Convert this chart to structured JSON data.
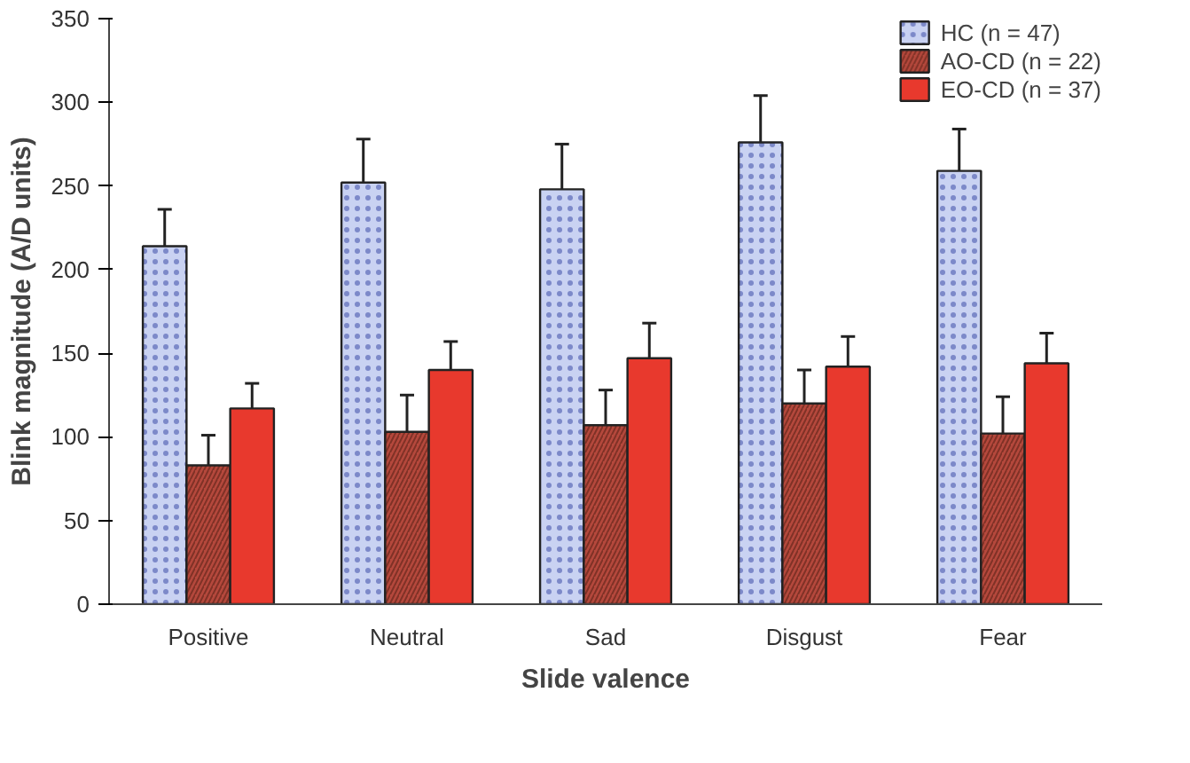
{
  "chart_data": {
    "type": "bar",
    "xlabel": "Slide valence",
    "ylabel": "Blink magnitude (A/D units)",
    "categories": [
      "Positive",
      "Neutral",
      "Sad",
      "Disgust",
      "Fear"
    ],
    "series": [
      {
        "name": "HC (n = 47)",
        "color": "#c9d2f2",
        "values": [
          214,
          252,
          248,
          276,
          259
        ],
        "errors": [
          [
            214,
            236
          ],
          [
            252,
            278
          ],
          [
            248,
            275
          ],
          [
            276,
            304
          ],
          [
            259,
            284
          ]
        ]
      },
      {
        "name": "AO-CD (n = 22)",
        "color": "#b5483c",
        "values": [
          83,
          103,
          107,
          120,
          102
        ],
        "errors": [
          [
            83,
            101
          ],
          [
            103,
            125
          ],
          [
            107,
            128
          ],
          [
            120,
            140
          ],
          [
            102,
            124
          ]
        ]
      },
      {
        "name": "EO-CD (n = 37)",
        "color": "#e8392d",
        "values": [
          117,
          140,
          147,
          142,
          144
        ],
        "errors": [
          [
            117,
            132
          ],
          [
            140,
            157
          ],
          [
            147,
            168
          ],
          [
            142,
            160
          ],
          [
            144,
            162
          ]
        ]
      }
    ],
    "ylim": [
      0,
      350
    ],
    "yticks": [
      0,
      50,
      100,
      150,
      200,
      250,
      300,
      350
    ],
    "grid": false,
    "legend": "top right"
  }
}
